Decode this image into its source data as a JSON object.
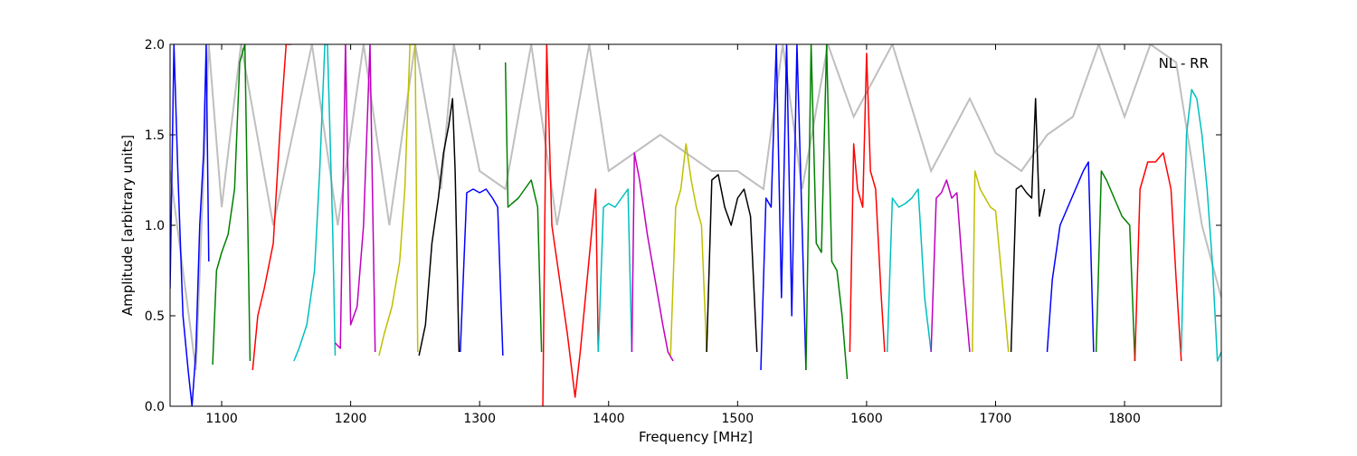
{
  "chart_data": {
    "type": "line",
    "annotation": "NL - RR",
    "xlabel": "Frequency [MHz]",
    "ylabel": "Amplitude [arbitrary units]",
    "xlim": [
      1060,
      1875
    ],
    "ylim": [
      0.0,
      2.0
    ],
    "xticks": [
      1100,
      1200,
      1300,
      1400,
      1500,
      1600,
      1700,
      1800
    ],
    "xtick_labels": [
      "1100",
      "1200",
      "1300",
      "1400",
      "1500",
      "1600",
      "1700",
      "1800"
    ],
    "yticks": [
      0.0,
      0.5,
      1.0,
      1.5,
      2.0
    ],
    "ytick_labels": [
      "0.0",
      "0.5",
      "1.0",
      "1.5",
      "2.0"
    ],
    "grid": false,
    "colors": {
      "background_band": "#bfbfbf",
      "blue": "#0000ff",
      "green": "#008000",
      "red": "#ff0000",
      "cyan": "#00bfbf",
      "magenta": "#bf00bf",
      "yellow": "#bfbf00",
      "black": "#000000"
    },
    "background_band": {
      "x": [
        1060,
        1080,
        1090,
        1100,
        1115,
        1140,
        1170,
        1190,
        1210,
        1230,
        1250,
        1270,
        1280,
        1300,
        1320,
        1340,
        1360,
        1385,
        1400,
        1420,
        1440,
        1460,
        1480,
        1500,
        1520,
        1535,
        1550,
        1570,
        1590,
        1620,
        1650,
        1680,
        1700,
        1720,
        1740,
        1760,
        1780,
        1800,
        1820,
        1840,
        1860,
        1875
      ],
      "y": [
        1.3,
        0.2,
        2.0,
        1.1,
        2.0,
        1.0,
        2.0,
        1.0,
        2.0,
        1.0,
        2.0,
        1.2,
        2.0,
        1.3,
        1.2,
        2.0,
        1.0,
        2.0,
        1.3,
        1.4,
        1.5,
        1.4,
        1.3,
        1.3,
        1.2,
        2.0,
        1.2,
        2.0,
        1.6,
        2.0,
        1.3,
        1.7,
        1.4,
        1.3,
        1.5,
        1.6,
        2.0,
        1.6,
        2.0,
        1.9,
        1.0,
        0.6
      ]
    },
    "series": [
      {
        "color": "blue",
        "x": [
          1060,
          1063,
          1066,
          1070,
          1074,
          1077,
          1080,
          1083,
          1086,
          1088,
          1090
        ],
        "y": [
          0.65,
          2.0,
          1.3,
          0.5,
          0.2,
          0.0,
          0.3,
          1.0,
          1.4,
          2.0,
          0.8
        ]
      },
      {
        "color": "green",
        "x": [
          1093,
          1096,
          1100,
          1105,
          1110,
          1114,
          1118,
          1122
        ],
        "y": [
          0.23,
          0.75,
          0.85,
          0.95,
          1.2,
          1.9,
          2.0,
          0.25
        ]
      },
      {
        "color": "red",
        "x": [
          1124,
          1128,
          1133,
          1140,
          1145,
          1150,
          1154
        ],
        "y": [
          0.2,
          0.5,
          0.65,
          0.9,
          1.5,
          2.0,
          2.0
        ]
      },
      {
        "color": "cyan",
        "x": [
          1156,
          1160,
          1166,
          1172,
          1176,
          1180,
          1182,
          1186,
          1188
        ],
        "y": [
          0.25,
          0.32,
          0.45,
          0.75,
          1.3,
          2.0,
          2.0,
          1.0,
          0.28
        ]
      },
      {
        "color": "magenta",
        "x": [
          1188,
          1192,
          1196,
          1200,
          1205,
          1210,
          1215,
          1219
        ],
        "y": [
          0.35,
          0.32,
          2.0,
          0.45,
          0.55,
          1.0,
          2.0,
          0.3
        ]
      },
      {
        "color": "yellow",
        "x": [
          1222,
          1226,
          1232,
          1238,
          1242,
          1246,
          1250,
          1252
        ],
        "y": [
          0.28,
          0.4,
          0.55,
          0.8,
          1.2,
          2.0,
          2.0,
          0.3
        ]
      },
      {
        "color": "black",
        "x": [
          1253,
          1258,
          1263,
          1268,
          1272,
          1276,
          1279,
          1281,
          1284
        ],
        "y": [
          0.28,
          0.45,
          0.9,
          1.15,
          1.4,
          1.55,
          1.7,
          1.3,
          0.3
        ]
      },
      {
        "color": "blue",
        "x": [
          1285,
          1290,
          1295,
          1300,
          1305,
          1310,
          1314,
          1318
        ],
        "y": [
          0.3,
          1.18,
          1.2,
          1.18,
          1.2,
          1.15,
          1.1,
          0.28
        ]
      },
      {
        "color": "green",
        "x": [
          1320,
          1322,
          1325,
          1330,
          1335,
          1340,
          1345,
          1348
        ],
        "y": [
          1.9,
          1.1,
          1.12,
          1.15,
          1.2,
          1.25,
          1.1,
          0.3
        ]
      },
      {
        "color": "red",
        "x": [
          1349,
          1352,
          1356,
          1362,
          1368,
          1374,
          1378,
          1382,
          1386,
          1390,
          1392
        ],
        "y": [
          0.0,
          2.0,
          1.0,
          0.7,
          0.4,
          0.05,
          0.3,
          0.6,
          0.9,
          1.2,
          0.3
        ]
      },
      {
        "color": "cyan",
        "x": [
          1392,
          1396,
          1400,
          1405,
          1410,
          1415,
          1418
        ],
        "y": [
          0.3,
          1.1,
          1.12,
          1.1,
          1.15,
          1.2,
          0.3
        ]
      },
      {
        "color": "magenta",
        "x": [
          1418,
          1420,
          1424,
          1430,
          1436,
          1442,
          1446,
          1450
        ],
        "y": [
          0.3,
          1.4,
          1.25,
          0.95,
          0.7,
          0.45,
          0.3,
          0.25
        ]
      },
      {
        "color": "yellow",
        "x": [
          1448,
          1452,
          1456,
          1460,
          1464,
          1468,
          1472,
          1476
        ],
        "y": [
          0.28,
          1.1,
          1.2,
          1.45,
          1.25,
          1.1,
          1.0,
          0.3
        ]
      },
      {
        "color": "black",
        "x": [
          1476,
          1480,
          1485,
          1490,
          1495,
          1500,
          1505,
          1510,
          1515
        ],
        "y": [
          0.3,
          1.25,
          1.28,
          1.1,
          1.0,
          1.15,
          1.2,
          1.05,
          0.3
        ]
      },
      {
        "color": "blue",
        "x": [
          1518,
          1522,
          1526,
          1530,
          1534,
          1538,
          1542,
          1546,
          1550,
          1553
        ],
        "y": [
          0.2,
          1.15,
          1.1,
          2.0,
          0.6,
          2.0,
          0.5,
          2.0,
          1.0,
          0.2
        ]
      },
      {
        "color": "green",
        "x": [
          1553,
          1557,
          1561,
          1565,
          1569,
          1573,
          1577,
          1581,
          1585
        ],
        "y": [
          0.2,
          2.0,
          0.9,
          0.85,
          2.0,
          0.8,
          0.75,
          0.5,
          0.15
        ]
      },
      {
        "color": "red",
        "x": [
          1587,
          1590,
          1593,
          1597,
          1600,
          1603,
          1607,
          1611,
          1614
        ],
        "y": [
          0.3,
          1.45,
          1.2,
          1.1,
          1.95,
          1.3,
          1.2,
          0.65,
          0.3
        ]
      },
      {
        "color": "cyan",
        "x": [
          1616,
          1620,
          1625,
          1630,
          1635,
          1640,
          1645,
          1650
        ],
        "y": [
          0.3,
          1.15,
          1.1,
          1.12,
          1.15,
          1.2,
          0.6,
          0.3
        ]
      },
      {
        "color": "magenta",
        "x": [
          1650,
          1654,
          1658,
          1662,
          1666,
          1670,
          1675,
          1680
        ],
        "y": [
          0.3,
          1.15,
          1.18,
          1.25,
          1.15,
          1.18,
          0.7,
          0.3
        ]
      },
      {
        "color": "yellow",
        "x": [
          1682,
          1684,
          1688,
          1692,
          1696,
          1700,
          1705,
          1710
        ],
        "y": [
          0.3,
          1.3,
          1.2,
          1.15,
          1.1,
          1.08,
          0.7,
          0.3
        ]
      },
      {
        "color": "black",
        "x": [
          1712,
          1716,
          1720,
          1724,
          1728,
          1731,
          1734,
          1738
        ],
        "y": [
          0.3,
          1.2,
          1.22,
          1.18,
          1.15,
          1.7,
          1.05,
          1.2
        ]
      },
      {
        "color": "blue",
        "x": [
          1740,
          1744,
          1750,
          1756,
          1762,
          1768,
          1772,
          1776
        ],
        "y": [
          0.3,
          0.7,
          1.0,
          1.1,
          1.2,
          1.3,
          1.35,
          0.3
        ]
      },
      {
        "color": "green",
        "x": [
          1778,
          1782,
          1786,
          1792,
          1798,
          1804,
          1808
        ],
        "y": [
          0.3,
          1.3,
          1.25,
          1.15,
          1.05,
          1.0,
          0.25
        ]
      },
      {
        "color": "red",
        "x": [
          1808,
          1812,
          1818,
          1824,
          1830,
          1836,
          1840,
          1844
        ],
        "y": [
          0.25,
          1.2,
          1.35,
          1.35,
          1.4,
          1.2,
          0.7,
          0.25
        ]
      },
      {
        "color": "cyan",
        "x": [
          1844,
          1848,
          1852,
          1856,
          1860,
          1864,
          1868,
          1872,
          1875
        ],
        "y": [
          0.3,
          1.5,
          1.75,
          1.7,
          1.5,
          1.2,
          0.8,
          0.25,
          0.3
        ]
      }
    ]
  }
}
